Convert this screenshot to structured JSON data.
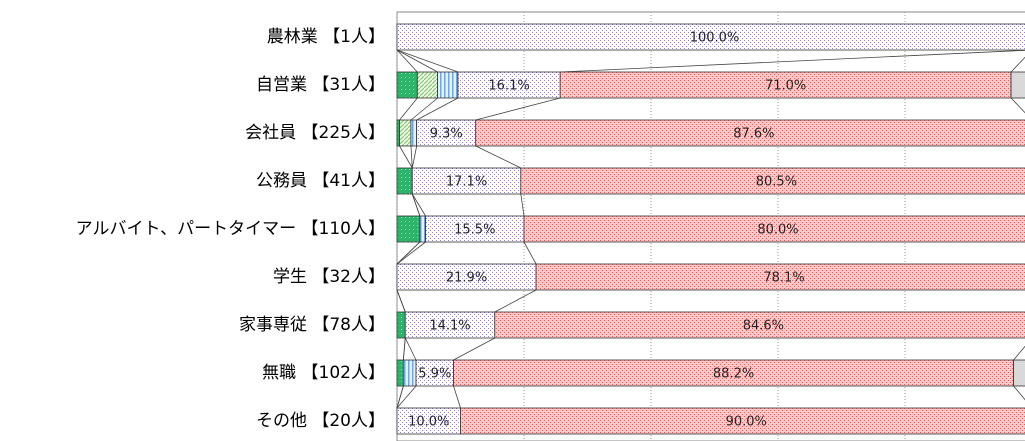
{
  "chart_data": {
    "type": "stacked-bar-horizontal",
    "categories": [
      "農林業 【1人】",
      "自営業 【31人】",
      "会社員 【225人】",
      "公務員 【41人】",
      "アルバイト、パートタイマー 【110人】",
      "学生 【32人】",
      "家事専従 【78人】",
      "無職 【102人】",
      "その他 【20人】"
    ],
    "xlim": [
      0,
      100
    ],
    "xticks": [
      0,
      20,
      40,
      60,
      80,
      100
    ],
    "grid": true,
    "series": [
      {
        "color": "#2db36a",
        "pattern": "dots",
        "values": [
          0,
          3.2,
          0.4,
          2.4,
          3.6,
          0,
          1.3,
          1.0,
          0
        ]
      },
      {
        "color": "#8cc97a",
        "pattern": "diagonal",
        "values": [
          0,
          3.2,
          1.8,
          0,
          0,
          0,
          0,
          0,
          0
        ]
      },
      {
        "color": "#6fa8e0",
        "pattern": "vertical",
        "values": [
          0,
          3.2,
          0.9,
          0,
          0.9,
          0,
          0,
          2.0,
          0
        ]
      },
      {
        "color": "#9a80d4",
        "pattern": "sparse",
        "values": [
          100.0,
          16.1,
          9.3,
          17.1,
          15.5,
          21.9,
          14.1,
          5.9,
          10.0
        ],
        "value_labels": [
          "100.0%",
          "16.1%",
          "9.3%",
          "17.1%",
          "15.5%",
          "21.9%",
          "14.1%",
          "5.9%",
          "10.0%"
        ]
      },
      {
        "color": "#e85a5a",
        "pattern": "pink",
        "values": [
          0,
          71.0,
          87.6,
          80.5,
          80.0,
          78.1,
          84.6,
          88.2,
          90.0
        ],
        "value_labels": [
          null,
          "71.0%",
          "87.6%",
          "80.5%",
          "80.0%",
          "78.1%",
          "84.6%",
          "88.2%",
          "90.0%"
        ]
      },
      {
        "color": "#d9d9d9",
        "pattern": "solid",
        "values": [
          0,
          3.2,
          0,
          0,
          0,
          0,
          0,
          2.9,
          0
        ]
      }
    ]
  }
}
